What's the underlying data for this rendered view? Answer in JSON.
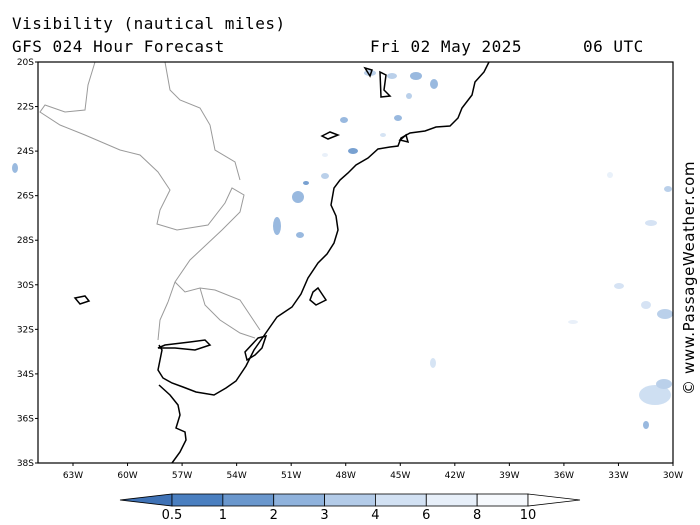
{
  "header": {
    "title": "Visibility (nautical miles)",
    "model": "GFS 024 Hour Forecast",
    "date": "Fri 02 May 2025",
    "time": "06 UTC"
  },
  "credit": "© www.PassageWeather.com",
  "axes": {
    "lat_labels": [
      "20S",
      "22S",
      "24S",
      "26S",
      "28S",
      "30S",
      "32S",
      "34S",
      "36S",
      "38S"
    ],
    "lon_labels": [
      "63W",
      "60W",
      "57W",
      "54W",
      "51W",
      "48W",
      "45W",
      "42W",
      "39W",
      "36W",
      "33W",
      "30W"
    ]
  },
  "legend": {
    "labels": [
      "0.5",
      "1",
      "2",
      "3",
      "4",
      "6",
      "8",
      "10"
    ],
    "colors": [
      "#3f72b6",
      "#4a7fc0",
      "#6a97cd",
      "#8fb2dc",
      "#b3cbe8",
      "#d2e1f3",
      "#e7eff9",
      "#f6f9fd",
      "#ffffff"
    ]
  },
  "palette": {
    "coast": "#000000",
    "borders": "#9a9a9a",
    "fog_light": "#c9dcf1",
    "fog_mid": "#8fb2dc",
    "fog_dark": "#4a7fc0"
  }
}
